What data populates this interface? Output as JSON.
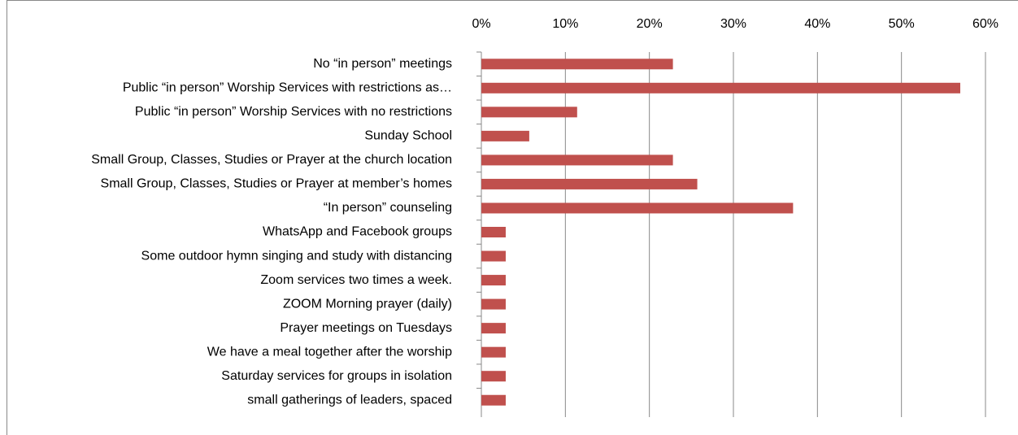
{
  "chart_data": {
    "type": "hbar",
    "categories": [
      "No “in person” meetings",
      "Public “in person” Worship Services with restrictions as…",
      "Public “in person” Worship Services with no restrictions",
      "Sunday School",
      "Small Group,  Classes,  Studies or Prayer at the church location",
      "Small Group, Classes, Studies or Prayer at member’s homes",
      "“In person” counseling",
      "WhatsApp and Facebook groups",
      "Some outdoor hymn singing and study with distancing",
      "Zoom services two times a week.",
      "ZOOM Morning prayer (daily)",
      "Prayer meetings on Tuesdays",
      "We have a meal together after the worship",
      "Saturday services for groups in isolation",
      "small gatherings of leaders, spaced"
    ],
    "values": [
      22.8,
      57,
      11.4,
      5.7,
      22.8,
      25.7,
      37.1,
      2.9,
      2.9,
      2.9,
      2.9,
      2.9,
      2.9,
      2.9,
      2.9
    ],
    "color": "#c0504d",
    "xlim": [
      0,
      60
    ],
    "xticks": [
      {
        "value": 0,
        "label": "0%"
      },
      {
        "value": 10,
        "label": "10%"
      },
      {
        "value": 20,
        "label": "20%"
      },
      {
        "value": 30,
        "label": "30%"
      },
      {
        "value": 40,
        "label": "40%"
      },
      {
        "value": 50,
        "label": "50%"
      },
      {
        "value": 60,
        "label": "60%"
      }
    ],
    "grid": true
  }
}
